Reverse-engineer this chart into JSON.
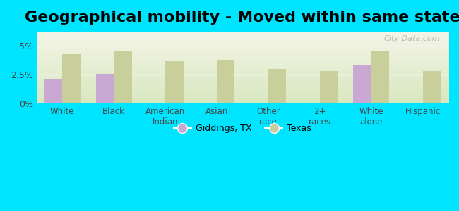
{
  "title": "Geographical mobility - Moved within same state",
  "categories": [
    "White",
    "Black",
    "American\nIndian",
    "Asian",
    "Other\nrace",
    "2+\nraces",
    "White\nalone",
    "Hispanic"
  ],
  "giddings_values": [
    2.1,
    2.6,
    0,
    0,
    0,
    0,
    3.3,
    0
  ],
  "texas_values": [
    4.3,
    4.6,
    3.7,
    3.8,
    3.0,
    2.8,
    4.6,
    2.8
  ],
  "giddings_color": "#c9a8d4",
  "texas_color": "#c8cf9a",
  "background_outer": "#00e5ff",
  "plot_bg_gradient_top": "#f5f5e8",
  "plot_bg_gradient_bottom": "#d8e8c0",
  "ylim": [
    0,
    6.25
  ],
  "ytick_values": [
    0,
    2.5,
    5.0
  ],
  "ytick_labels": [
    "0%",
    "2.5%",
    "5%"
  ],
  "title_fontsize": 16,
  "legend_labels": [
    "Giddings, TX",
    "Texas"
  ],
  "watermark": "City-Data.com",
  "bar_width": 0.35
}
